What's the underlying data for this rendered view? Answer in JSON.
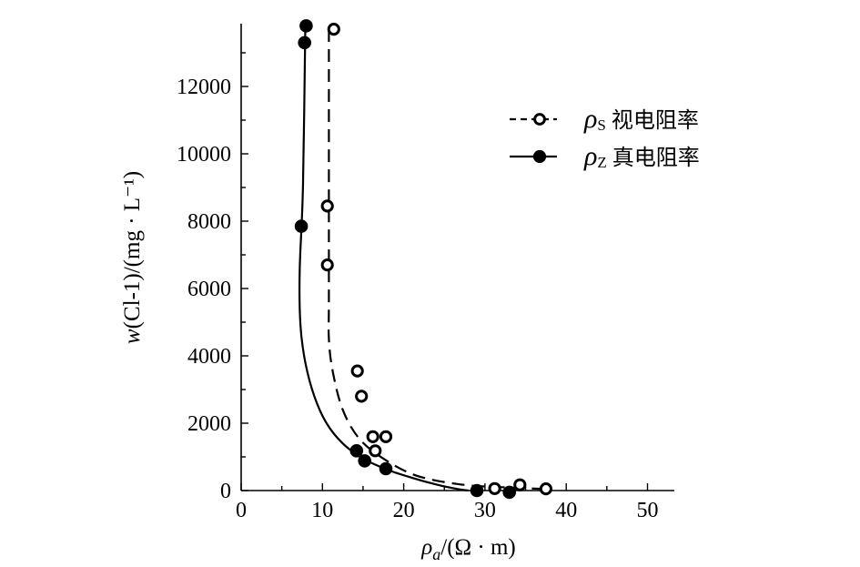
{
  "chart_data": {
    "type": "scatter",
    "xlabel": "ρa/(Ω · m)",
    "xlabel_parts": {
      "symbol": "ρ",
      "subscript": "a",
      "rest": "/(Ω · m)"
    },
    "ylabel": "w(Cl-1)/(mg · L⁻¹)",
    "ylabel_parts": {
      "var": "w",
      "rest": "(Cl-1)/(mg · L⁻¹)"
    },
    "xlim": [
      0,
      53
    ],
    "ylim": [
      0,
      14000
    ],
    "xticks": [
      0,
      10,
      20,
      30,
      40,
      50
    ],
    "yticks": [
      0,
      2000,
      4000,
      6000,
      8000,
      10000,
      12000
    ],
    "grid": false,
    "legend_position": "top-right",
    "series": [
      {
        "name": "ρS 视电阻率",
        "symbol": "ρ",
        "subscript": "S",
        "label": "视电阻率",
        "marker": "open-circle",
        "line": "dashed",
        "points": [
          [
            11.4,
            13700
          ],
          [
            10.6,
            8450
          ],
          [
            10.6,
            6700
          ],
          [
            14.3,
            3550
          ],
          [
            14.8,
            2800
          ],
          [
            16.2,
            1600
          ],
          [
            17.8,
            1600
          ],
          [
            16.5,
            1180
          ],
          [
            31.2,
            60
          ],
          [
            34.3,
            170
          ],
          [
            37.5,
            50
          ]
        ],
        "curve": [
          [
            10.8,
            13700
          ],
          [
            10.8,
            6000
          ],
          [
            10.8,
            4500
          ],
          [
            11.3,
            3500
          ],
          [
            12.5,
            2400
          ],
          [
            14.5,
            1550
          ],
          [
            17.5,
            950
          ],
          [
            21.5,
            450
          ],
          [
            27,
            180
          ],
          [
            33,
            90
          ],
          [
            38,
            40
          ]
        ]
      },
      {
        "name": "ρZ 真电阻率",
        "symbol": "ρ",
        "subscript": "Z",
        "label": "真电阻率",
        "marker": "filled-circle",
        "line": "solid",
        "points": [
          [
            8.0,
            13800
          ],
          [
            7.8,
            13300
          ],
          [
            7.4,
            7850
          ],
          [
            14.2,
            1180
          ],
          [
            15.2,
            880
          ],
          [
            17.8,
            650
          ],
          [
            29.0,
            0
          ],
          [
            33.0,
            -50
          ]
        ],
        "curve": [
          [
            7.9,
            13800
          ],
          [
            7.6,
            9000
          ],
          [
            7.2,
            6500
          ],
          [
            7.3,
            4900
          ],
          [
            7.9,
            3800
          ],
          [
            9.0,
            2800
          ],
          [
            10.5,
            2000
          ],
          [
            12.5,
            1400
          ],
          [
            15,
            950
          ],
          [
            18,
            620
          ],
          [
            21,
            380
          ],
          [
            24,
            180
          ],
          [
            26.5,
            50
          ],
          [
            28,
            0
          ]
        ]
      }
    ]
  }
}
